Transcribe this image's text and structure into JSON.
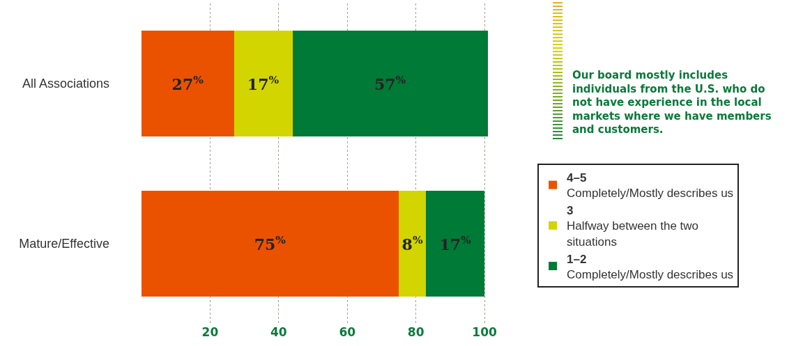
{
  "chart_data": {
    "type": "bar",
    "orientation": "horizontal",
    "stacked": true,
    "categories": [
      "All Associations",
      "Mature/Effective"
    ],
    "series": [
      {
        "name": "4–5\nCompletely/Mostly describes us",
        "color": "#eb5200",
        "values": [
          27,
          75
        ],
        "value_labels": [
          "27$^{%}$",
          "75$^{%}$"
        ]
      },
      {
        "name": "3\nHalfway between the two\nsituations",
        "color": "#d2d500",
        "values": [
          17,
          8
        ],
        "value_labels": [
          "17$^{%}$",
          "8$^{%}$"
        ]
      },
      {
        "name": "1–2\nCompletely/Mostly describes us",
        "color": "#007a37",
        "values": [
          57,
          17
        ],
        "value_labels": [
          "57$^{%}$",
          "17$^{%}$"
        ]
      }
    ],
    "xlim": [
      0,
      101
    ],
    "xticks": [
      20,
      40,
      60,
      80,
      100
    ],
    "grid": "x",
    "legend": "right",
    "annotations": [
      "Our board mostly includes individuals from the U.S. who do not have experience in the local markets where we have members and customers."
    ]
  }
}
